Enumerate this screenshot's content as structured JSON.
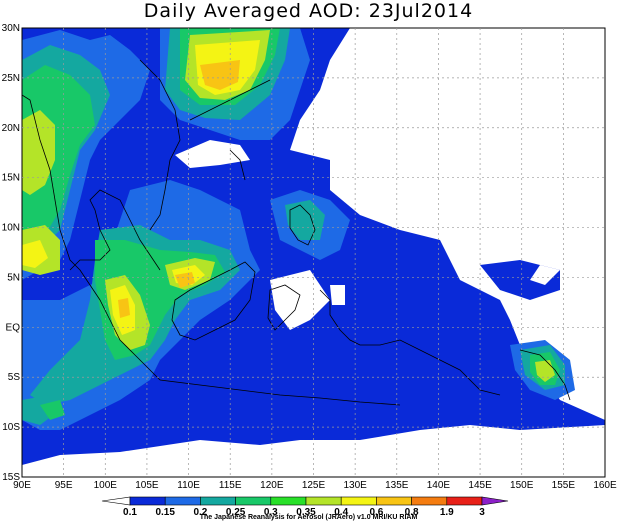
{
  "title": "Daily Averaged AOD: 23Jul2014",
  "map": {
    "lon_range": [
      90,
      160
    ],
    "lat_range": [
      -15,
      30
    ],
    "lon_ticks": [
      "90E",
      "95E",
      "100E",
      "105E",
      "110E",
      "115E",
      "120E",
      "125E",
      "130E",
      "135E",
      "140E",
      "145E",
      "150E",
      "155E",
      "160E"
    ],
    "lat_ticks": [
      "15S",
      "10S",
      "5S",
      "EQ",
      "5N",
      "10N",
      "15N",
      "20N",
      "25N",
      "30N"
    ],
    "grid": true
  },
  "colorbar": {
    "labels": [
      "0.1",
      "0.15",
      "0.2",
      "0.25",
      "0.3",
      "0.35",
      "0.4",
      "0.6",
      "0.8",
      "1.9",
      "3"
    ],
    "colors": [
      "#0a2ad8",
      "#1e6ae6",
      "#14a8a0",
      "#18c868",
      "#28e028",
      "#b4e428",
      "#f4f414",
      "#f8c414",
      "#f47c10",
      "#e82018",
      "#8c20c8"
    ],
    "under_color": "#ffffff"
  },
  "credit": "The Japanese Reanalysis for Aerosol (JRAero) v1.0 MRI/KU RIAM"
}
